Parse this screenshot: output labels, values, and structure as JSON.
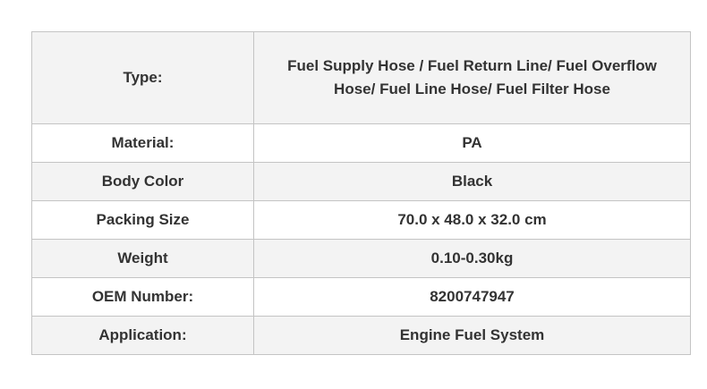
{
  "table": {
    "rows": [
      [
        "Type:",
        "Fuel Supply Hose / Fuel Return Line/ Fuel Overflow Hose/ Fuel Line Hose/ Fuel Filter Hose"
      ],
      [
        "Material:",
        "PA"
      ],
      [
        "Body Color",
        "Black"
      ],
      [
        "Packing Size",
        "70.0 x 48.0 x 32.0 cm"
      ],
      [
        "Weight",
        "0.10-0.30kg"
      ],
      [
        "OEM Number:",
        "8200747947"
      ],
      [
        "Application:",
        "Engine Fuel System"
      ]
    ]
  }
}
